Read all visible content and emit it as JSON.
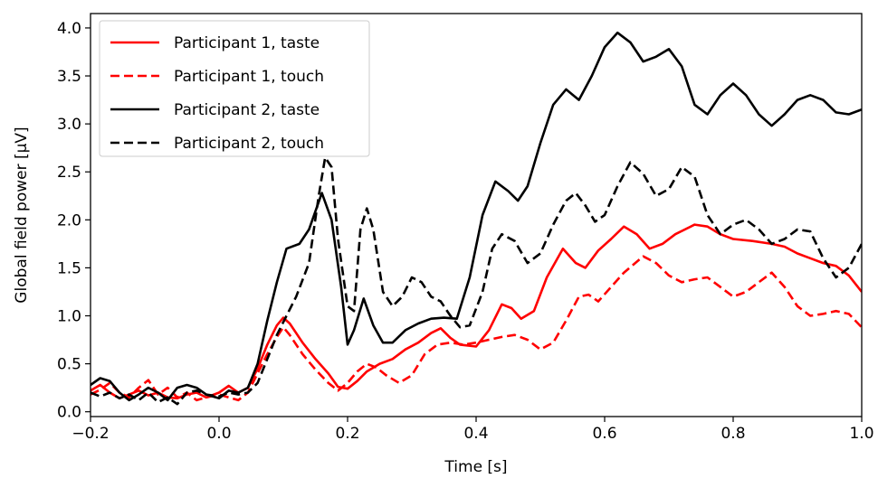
{
  "chart_data": {
    "type": "line",
    "title": "",
    "xlabel": "Time [s]",
    "ylabel": "Global field power [μV]",
    "xlim": [
      -0.2,
      1.0
    ],
    "ylim": [
      -0.05,
      4.15
    ],
    "xticks": [
      -0.2,
      0.0,
      0.2,
      0.4,
      0.6,
      0.8,
      1.0
    ],
    "xtick_labels": [
      "−0.2",
      "0.0",
      "0.2",
      "0.4",
      "0.6",
      "0.8",
      "1.0"
    ],
    "yticks": [
      0.0,
      0.5,
      1.0,
      1.5,
      2.0,
      2.5,
      3.0,
      3.5,
      4.0
    ],
    "ytick_labels": [
      "0.0",
      "0.5",
      "1.0",
      "1.5",
      "2.0",
      "2.5",
      "3.0",
      "3.5",
      "4.0"
    ],
    "grid": false,
    "legend_position": "top-left",
    "series": [
      {
        "name": "Participant 1, taste",
        "color": "#ff0000",
        "dash": "solid",
        "points": [
          [
            -0.2,
            0.22
          ],
          [
            -0.185,
            0.28
          ],
          [
            -0.17,
            0.2
          ],
          [
            -0.155,
            0.14
          ],
          [
            -0.14,
            0.18
          ],
          [
            -0.125,
            0.22
          ],
          [
            -0.11,
            0.17
          ],
          [
            -0.095,
            0.2
          ],
          [
            -0.08,
            0.15
          ],
          [
            -0.065,
            0.14
          ],
          [
            -0.05,
            0.18
          ],
          [
            -0.035,
            0.2
          ],
          [
            -0.02,
            0.15
          ],
          [
            0.0,
            0.2
          ],
          [
            0.015,
            0.27
          ],
          [
            0.03,
            0.2
          ],
          [
            0.045,
            0.25
          ],
          [
            0.06,
            0.45
          ],
          [
            0.075,
            0.7
          ],
          [
            0.09,
            0.9
          ],
          [
            0.1,
            0.98
          ],
          [
            0.11,
            0.92
          ],
          [
            0.13,
            0.72
          ],
          [
            0.15,
            0.55
          ],
          [
            0.17,
            0.4
          ],
          [
            0.185,
            0.26
          ],
          [
            0.2,
            0.24
          ],
          [
            0.215,
            0.32
          ],
          [
            0.23,
            0.42
          ],
          [
            0.25,
            0.5
          ],
          [
            0.27,
            0.55
          ],
          [
            0.29,
            0.65
          ],
          [
            0.31,
            0.72
          ],
          [
            0.33,
            0.82
          ],
          [
            0.345,
            0.87
          ],
          [
            0.36,
            0.77
          ],
          [
            0.375,
            0.7
          ],
          [
            0.4,
            0.68
          ],
          [
            0.42,
            0.85
          ],
          [
            0.44,
            1.12
          ],
          [
            0.455,
            1.08
          ],
          [
            0.47,
            0.97
          ],
          [
            0.49,
            1.05
          ],
          [
            0.51,
            1.4
          ],
          [
            0.535,
            1.7
          ],
          [
            0.555,
            1.55
          ],
          [
            0.57,
            1.5
          ],
          [
            0.59,
            1.68
          ],
          [
            0.61,
            1.8
          ],
          [
            0.63,
            1.93
          ],
          [
            0.65,
            1.85
          ],
          [
            0.67,
            1.7
          ],
          [
            0.69,
            1.75
          ],
          [
            0.71,
            1.85
          ],
          [
            0.74,
            1.95
          ],
          [
            0.76,
            1.93
          ],
          [
            0.78,
            1.85
          ],
          [
            0.8,
            1.8
          ],
          [
            0.83,
            1.78
          ],
          [
            0.86,
            1.75
          ],
          [
            0.88,
            1.72
          ],
          [
            0.9,
            1.65
          ],
          [
            0.92,
            1.6
          ],
          [
            0.94,
            1.55
          ],
          [
            0.96,
            1.52
          ],
          [
            0.98,
            1.42
          ],
          [
            1.0,
            1.25
          ]
        ]
      },
      {
        "name": "Participant 1, touch",
        "color": "#ff0000",
        "dash": "dashed",
        "points": [
          [
            -0.2,
            0.18
          ],
          [
            -0.185,
            0.23
          ],
          [
            -0.17,
            0.3
          ],
          [
            -0.155,
            0.2
          ],
          [
            -0.14,
            0.15
          ],
          [
            -0.125,
            0.25
          ],
          [
            -0.11,
            0.33
          ],
          [
            -0.095,
            0.18
          ],
          [
            -0.08,
            0.25
          ],
          [
            -0.065,
            0.15
          ],
          [
            -0.05,
            0.2
          ],
          [
            -0.035,
            0.12
          ],
          [
            -0.02,
            0.15
          ],
          [
            0.0,
            0.18
          ],
          [
            0.015,
            0.15
          ],
          [
            0.03,
            0.12
          ],
          [
            0.045,
            0.2
          ],
          [
            0.06,
            0.4
          ],
          [
            0.075,
            0.6
          ],
          [
            0.09,
            0.78
          ],
          [
            0.1,
            0.88
          ],
          [
            0.11,
            0.8
          ],
          [
            0.13,
            0.6
          ],
          [
            0.15,
            0.44
          ],
          [
            0.17,
            0.3
          ],
          [
            0.185,
            0.22
          ],
          [
            0.2,
            0.3
          ],
          [
            0.215,
            0.42
          ],
          [
            0.23,
            0.5
          ],
          [
            0.245,
            0.46
          ],
          [
            0.26,
            0.38
          ],
          [
            0.28,
            0.3
          ],
          [
            0.3,
            0.38
          ],
          [
            0.32,
            0.6
          ],
          [
            0.34,
            0.7
          ],
          [
            0.36,
            0.72
          ],
          [
            0.38,
            0.7
          ],
          [
            0.4,
            0.72
          ],
          [
            0.42,
            0.75
          ],
          [
            0.44,
            0.78
          ],
          [
            0.46,
            0.8
          ],
          [
            0.48,
            0.75
          ],
          [
            0.5,
            0.65
          ],
          [
            0.52,
            0.72
          ],
          [
            0.54,
            0.95
          ],
          [
            0.56,
            1.2
          ],
          [
            0.575,
            1.22
          ],
          [
            0.59,
            1.15
          ],
          [
            0.61,
            1.3
          ],
          [
            0.63,
            1.45
          ],
          [
            0.66,
            1.62
          ],
          [
            0.68,
            1.55
          ],
          [
            0.7,
            1.42
          ],
          [
            0.72,
            1.35
          ],
          [
            0.74,
            1.38
          ],
          [
            0.76,
            1.4
          ],
          [
            0.78,
            1.3
          ],
          [
            0.8,
            1.2
          ],
          [
            0.82,
            1.25
          ],
          [
            0.84,
            1.35
          ],
          [
            0.86,
            1.45
          ],
          [
            0.88,
            1.3
          ],
          [
            0.9,
            1.1
          ],
          [
            0.92,
            1.0
          ],
          [
            0.94,
            1.02
          ],
          [
            0.96,
            1.05
          ],
          [
            0.98,
            1.02
          ],
          [
            1.0,
            0.88
          ]
        ]
      },
      {
        "name": "Participant 2, taste",
        "color": "#000000",
        "dash": "solid",
        "points": [
          [
            -0.2,
            0.28
          ],
          [
            -0.185,
            0.35
          ],
          [
            -0.17,
            0.32
          ],
          [
            -0.155,
            0.2
          ],
          [
            -0.14,
            0.12
          ],
          [
            -0.125,
            0.18
          ],
          [
            -0.11,
            0.25
          ],
          [
            -0.095,
            0.2
          ],
          [
            -0.08,
            0.12
          ],
          [
            -0.065,
            0.25
          ],
          [
            -0.05,
            0.28
          ],
          [
            -0.035,
            0.25
          ],
          [
            -0.02,
            0.18
          ],
          [
            0.0,
            0.14
          ],
          [
            0.015,
            0.22
          ],
          [
            0.03,
            0.2
          ],
          [
            0.045,
            0.25
          ],
          [
            0.06,
            0.5
          ],
          [
            0.075,
            0.95
          ],
          [
            0.09,
            1.35
          ],
          [
            0.105,
            1.7
          ],
          [
            0.125,
            1.75
          ],
          [
            0.14,
            1.9
          ],
          [
            0.16,
            2.28
          ],
          [
            0.175,
            2.0
          ],
          [
            0.19,
            1.3
          ],
          [
            0.2,
            0.7
          ],
          [
            0.21,
            0.85
          ],
          [
            0.225,
            1.18
          ],
          [
            0.24,
            0.9
          ],
          [
            0.255,
            0.72
          ],
          [
            0.27,
            0.72
          ],
          [
            0.29,
            0.85
          ],
          [
            0.31,
            0.92
          ],
          [
            0.33,
            0.97
          ],
          [
            0.35,
            0.98
          ],
          [
            0.37,
            0.97
          ],
          [
            0.39,
            1.4
          ],
          [
            0.41,
            2.05
          ],
          [
            0.43,
            2.4
          ],
          [
            0.45,
            2.3
          ],
          [
            0.465,
            2.2
          ],
          [
            0.48,
            2.35
          ],
          [
            0.5,
            2.8
          ],
          [
            0.52,
            3.2
          ],
          [
            0.54,
            3.36
          ],
          [
            0.56,
            3.25
          ],
          [
            0.58,
            3.5
          ],
          [
            0.6,
            3.8
          ],
          [
            0.62,
            3.95
          ],
          [
            0.64,
            3.85
          ],
          [
            0.66,
            3.65
          ],
          [
            0.68,
            3.7
          ],
          [
            0.7,
            3.78
          ],
          [
            0.72,
            3.6
          ],
          [
            0.74,
            3.2
          ],
          [
            0.76,
            3.1
          ],
          [
            0.78,
            3.3
          ],
          [
            0.8,
            3.42
          ],
          [
            0.82,
            3.3
          ],
          [
            0.84,
            3.1
          ],
          [
            0.86,
            2.98
          ],
          [
            0.88,
            3.1
          ],
          [
            0.9,
            3.25
          ],
          [
            0.92,
            3.3
          ],
          [
            0.94,
            3.25
          ],
          [
            0.96,
            3.12
          ],
          [
            0.98,
            3.1
          ],
          [
            1.0,
            3.15
          ]
        ]
      },
      {
        "name": "Participant 2, touch",
        "color": "#000000",
        "dash": "dashed",
        "points": [
          [
            -0.2,
            0.2
          ],
          [
            -0.185,
            0.16
          ],
          [
            -0.17,
            0.2
          ],
          [
            -0.155,
            0.14
          ],
          [
            -0.14,
            0.18
          ],
          [
            -0.125,
            0.12
          ],
          [
            -0.11,
            0.2
          ],
          [
            -0.095,
            0.1
          ],
          [
            -0.08,
            0.15
          ],
          [
            -0.065,
            0.08
          ],
          [
            -0.05,
            0.2
          ],
          [
            -0.035,
            0.22
          ],
          [
            -0.02,
            0.18
          ],
          [
            0.0,
            0.16
          ],
          [
            0.015,
            0.2
          ],
          [
            0.03,
            0.18
          ],
          [
            0.045,
            0.2
          ],
          [
            0.06,
            0.3
          ],
          [
            0.075,
            0.55
          ],
          [
            0.09,
            0.8
          ],
          [
            0.105,
            1.0
          ],
          [
            0.12,
            1.2
          ],
          [
            0.14,
            1.55
          ],
          [
            0.155,
            2.25
          ],
          [
            0.165,
            2.65
          ],
          [
            0.175,
            2.55
          ],
          [
            0.185,
            1.8
          ],
          [
            0.2,
            1.1
          ],
          [
            0.21,
            1.05
          ],
          [
            0.22,
            1.9
          ],
          [
            0.23,
            2.12
          ],
          [
            0.24,
            1.9
          ],
          [
            0.255,
            1.25
          ],
          [
            0.27,
            1.1
          ],
          [
            0.285,
            1.2
          ],
          [
            0.3,
            1.4
          ],
          [
            0.315,
            1.35
          ],
          [
            0.33,
            1.2
          ],
          [
            0.345,
            1.15
          ],
          [
            0.36,
            1.0
          ],
          [
            0.375,
            0.88
          ],
          [
            0.39,
            0.9
          ],
          [
            0.41,
            1.25
          ],
          [
            0.425,
            1.7
          ],
          [
            0.44,
            1.85
          ],
          [
            0.46,
            1.78
          ],
          [
            0.48,
            1.55
          ],
          [
            0.5,
            1.65
          ],
          [
            0.52,
            1.95
          ],
          [
            0.54,
            2.2
          ],
          [
            0.555,
            2.28
          ],
          [
            0.57,
            2.15
          ],
          [
            0.585,
            1.98
          ],
          [
            0.6,
            2.05
          ],
          [
            0.62,
            2.35
          ],
          [
            0.64,
            2.6
          ],
          [
            0.66,
            2.48
          ],
          [
            0.68,
            2.25
          ],
          [
            0.7,
            2.32
          ],
          [
            0.72,
            2.55
          ],
          [
            0.74,
            2.45
          ],
          [
            0.76,
            2.05
          ],
          [
            0.78,
            1.85
          ],
          [
            0.8,
            1.95
          ],
          [
            0.82,
            2.0
          ],
          [
            0.84,
            1.9
          ],
          [
            0.86,
            1.75
          ],
          [
            0.88,
            1.8
          ],
          [
            0.9,
            1.9
          ],
          [
            0.92,
            1.88
          ],
          [
            0.94,
            1.6
          ],
          [
            0.96,
            1.4
          ],
          [
            0.98,
            1.5
          ],
          [
            1.0,
            1.75
          ]
        ]
      }
    ]
  }
}
